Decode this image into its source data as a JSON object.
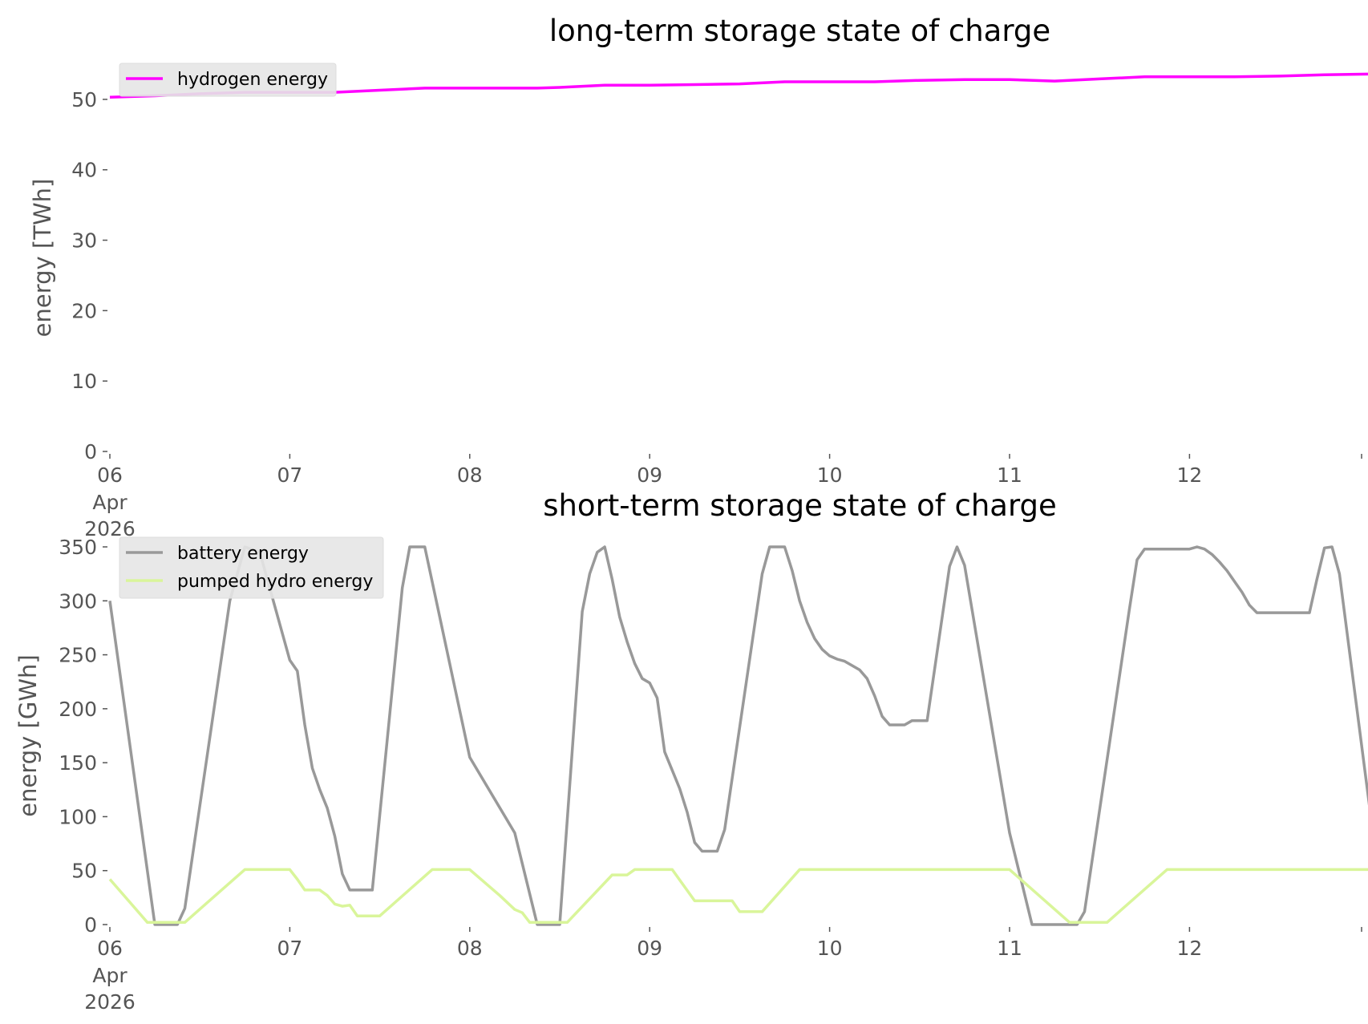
{
  "chart_data": [
    {
      "type": "line",
      "title": "long-term storage state of charge",
      "xlabel": "",
      "ylabel": "energy [TWh]",
      "ylim": [
        0,
        55
      ],
      "yticks": [
        0,
        10,
        20,
        30,
        40,
        50
      ],
      "xlim": [
        "2026-04-06",
        "2026-04-13"
      ],
      "x_tick_labels": [
        "06",
        "07",
        "08",
        "09",
        "10",
        "11",
        "12"
      ],
      "x_tick_sublabels": [
        "Apr",
        "2026"
      ],
      "grid": false,
      "legend": "top-left",
      "series": [
        {
          "name": "hydrogen energy",
          "color": "#ff00ff",
          "points": [
            [
              "2026-04-06 00:00",
              50.3
            ],
            [
              "2026-04-06 06:00",
              50.5
            ],
            [
              "2026-04-06 12:00",
              50.8
            ],
            [
              "2026-04-06 18:00",
              51.0
            ],
            [
              "2026-04-07 00:00",
              51.0
            ],
            [
              "2026-04-07 06:00",
              51.0
            ],
            [
              "2026-04-07 12:00",
              51.3
            ],
            [
              "2026-04-07 18:00",
              51.6
            ],
            [
              "2026-04-08 00:00",
              51.6
            ],
            [
              "2026-04-08 06:00",
              51.6
            ],
            [
              "2026-04-08 09:00",
              51.6
            ],
            [
              "2026-04-08 12:00",
              51.7
            ],
            [
              "2026-04-08 18:00",
              52.0
            ],
            [
              "2026-04-09 00:00",
              52.0
            ],
            [
              "2026-04-09 06:00",
              52.1
            ],
            [
              "2026-04-09 12:00",
              52.2
            ],
            [
              "2026-04-09 18:00",
              52.5
            ],
            [
              "2026-04-10 00:00",
              52.5
            ],
            [
              "2026-04-10 06:00",
              52.5
            ],
            [
              "2026-04-10 12:00",
              52.7
            ],
            [
              "2026-04-10 18:00",
              52.8
            ],
            [
              "2026-04-11 00:00",
              52.8
            ],
            [
              "2026-04-11 06:00",
              52.6
            ],
            [
              "2026-04-11 12:00",
              52.9
            ],
            [
              "2026-04-11 18:00",
              53.2
            ],
            [
              "2026-04-12 00:00",
              53.2
            ],
            [
              "2026-04-12 06:00",
              53.2
            ],
            [
              "2026-04-12 12:00",
              53.3
            ],
            [
              "2026-04-12 18:00",
              53.5
            ],
            [
              "2026-04-13 00:00",
              53.6
            ]
          ]
        }
      ]
    },
    {
      "type": "line",
      "title": "short-term storage state of charge",
      "xlabel": "",
      "ylabel": "energy [GWh]",
      "ylim": [
        0,
        350
      ],
      "yticks": [
        0,
        50,
        100,
        150,
        200,
        250,
        300,
        350
      ],
      "xlim": [
        "2026-04-06",
        "2026-04-13"
      ],
      "x_tick_labels": [
        "06",
        "07",
        "08",
        "09",
        "10",
        "11",
        "12"
      ],
      "x_tick_sublabels": [
        "Apr",
        "2026"
      ],
      "grid": false,
      "legend": "top-left",
      "series": [
        {
          "name": "battery energy",
          "color": "#999999",
          "points": [
            [
              "2026-04-06 00:00",
              300
            ],
            [
              "2026-04-06 06:00",
              0
            ],
            [
              "2026-04-06 09:00",
              0
            ],
            [
              "2026-04-06 10:00",
              15
            ],
            [
              "2026-04-06 16:00",
              300
            ],
            [
              "2026-04-06 18:00",
              350
            ],
            [
              "2026-04-06 20:00",
              345
            ],
            [
              "2026-04-07 00:00",
              245
            ],
            [
              "2026-04-07 01:00",
              235
            ],
            [
              "2026-04-07 02:00",
              185
            ],
            [
              "2026-04-07 03:00",
              145
            ],
            [
              "2026-04-07 04:00",
              125
            ],
            [
              "2026-04-07 05:00",
              108
            ],
            [
              "2026-04-07 06:00",
              82
            ],
            [
              "2026-04-07 07:00",
              47
            ],
            [
              "2026-04-07 08:00",
              32
            ],
            [
              "2026-04-07 11:00",
              32
            ],
            [
              "2026-04-07 15:00",
              312
            ],
            [
              "2026-04-07 16:00",
              350
            ],
            [
              "2026-04-07 18:00",
              350
            ],
            [
              "2026-04-08 00:00",
              155
            ],
            [
              "2026-04-08 06:00",
              85
            ],
            [
              "2026-04-08 09:00",
              0
            ],
            [
              "2026-04-08 12:00",
              0
            ],
            [
              "2026-04-08 15:00",
              290
            ],
            [
              "2026-04-08 16:00",
              325
            ],
            [
              "2026-04-08 17:00",
              345
            ],
            [
              "2026-04-08 18:00",
              350
            ],
            [
              "2026-04-08 19:00",
              320
            ],
            [
              "2026-04-08 20:00",
              285
            ],
            [
              "2026-04-08 21:00",
              262
            ],
            [
              "2026-04-08 22:00",
              242
            ],
            [
              "2026-04-08 23:00",
              228
            ],
            [
              "2026-04-09 00:00",
              224
            ],
            [
              "2026-04-09 01:00",
              210
            ],
            [
              "2026-04-09 02:00",
              160
            ],
            [
              "2026-04-09 03:00",
              143
            ],
            [
              "2026-04-09 04:00",
              126
            ],
            [
              "2026-04-09 05:00",
              104
            ],
            [
              "2026-04-09 06:00",
              76
            ],
            [
              "2026-04-09 07:00",
              68
            ],
            [
              "2026-04-09 09:00",
              68
            ],
            [
              "2026-04-09 10:00",
              88
            ],
            [
              "2026-04-09 15:00",
              325
            ],
            [
              "2026-04-09 16:00",
              350
            ],
            [
              "2026-04-09 18:00",
              350
            ],
            [
              "2026-04-09 19:00",
              328
            ],
            [
              "2026-04-09 20:00",
              300
            ],
            [
              "2026-04-09 21:00",
              280
            ],
            [
              "2026-04-09 22:00",
              265
            ],
            [
              "2026-04-09 23:00",
              255
            ],
            [
              "2026-04-10 00:00",
              249
            ],
            [
              "2026-04-10 01:00",
              246
            ],
            [
              "2026-04-10 02:00",
              244
            ],
            [
              "2026-04-10 03:00",
              240
            ],
            [
              "2026-04-10 04:00",
              236
            ],
            [
              "2026-04-10 05:00",
              228
            ],
            [
              "2026-04-10 06:00",
              212
            ],
            [
              "2026-04-10 07:00",
              193
            ],
            [
              "2026-04-10 08:00",
              185
            ],
            [
              "2026-04-10 10:00",
              185
            ],
            [
              "2026-04-10 11:00",
              189
            ],
            [
              "2026-04-10 13:00",
              189
            ],
            [
              "2026-04-10 16:00",
              332
            ],
            [
              "2026-04-10 17:00",
              350
            ],
            [
              "2026-04-10 18:00",
              333
            ],
            [
              "2026-04-11 00:00",
              85
            ],
            [
              "2026-04-11 03:00",
              0
            ],
            [
              "2026-04-11 09:00",
              0
            ],
            [
              "2026-04-11 10:00",
              12
            ],
            [
              "2026-04-11 16:00",
              293
            ],
            [
              "2026-04-11 17:00",
              338
            ],
            [
              "2026-04-11 18:00",
              348
            ],
            [
              "2026-04-12 00:00",
              348
            ],
            [
              "2026-04-12 01:00",
              350
            ],
            [
              "2026-04-12 02:00",
              348
            ],
            [
              "2026-04-12 03:00",
              343
            ],
            [
              "2026-04-12 04:00",
              336
            ],
            [
              "2026-04-12 05:00",
              328
            ],
            [
              "2026-04-12 06:00",
              318
            ],
            [
              "2026-04-12 07:00",
              308
            ],
            [
              "2026-04-12 08:00",
              296
            ],
            [
              "2026-04-12 09:00",
              289
            ],
            [
              "2026-04-12 16:00",
              289
            ],
            [
              "2026-04-12 17:00",
              320
            ],
            [
              "2026-04-12 18:00",
              349
            ],
            [
              "2026-04-12 19:00",
              350
            ],
            [
              "2026-04-12 20:00",
              325
            ],
            [
              "2026-04-13 00:00",
              110
            ]
          ]
        },
        {
          "name": "pumped hydro energy",
          "color": "#d9f59a",
          "points": [
            [
              "2026-04-06 00:00",
              42
            ],
            [
              "2026-04-06 05:00",
              2
            ],
            [
              "2026-04-06 10:00",
              2
            ],
            [
              "2026-04-06 18:00",
              51
            ],
            [
              "2026-04-07 00:00",
              51
            ],
            [
              "2026-04-07 01:00",
              42
            ],
            [
              "2026-04-07 02:00",
              32
            ],
            [
              "2026-04-07 04:00",
              32
            ],
            [
              "2026-04-07 05:00",
              27
            ],
            [
              "2026-04-07 06:00",
              19
            ],
            [
              "2026-04-07 07:00",
              17
            ],
            [
              "2026-04-07 08:00",
              18
            ],
            [
              "2026-04-07 09:00",
              8
            ],
            [
              "2026-04-07 12:00",
              8
            ],
            [
              "2026-04-07 19:00",
              51
            ],
            [
              "2026-04-08 00:00",
              51
            ],
            [
              "2026-04-08 04:00",
              27
            ],
            [
              "2026-04-08 06:00",
              14
            ],
            [
              "2026-04-08 07:00",
              11
            ],
            [
              "2026-04-08 08:00",
              2
            ],
            [
              "2026-04-08 13:00",
              2
            ],
            [
              "2026-04-08 19:00",
              46
            ],
            [
              "2026-04-08 21:00",
              46
            ],
            [
              "2026-04-08 22:00",
              51
            ],
            [
              "2026-04-09 03:00",
              51
            ],
            [
              "2026-04-09 06:00",
              22
            ],
            [
              "2026-04-09 11:00",
              22
            ],
            [
              "2026-04-09 12:00",
              12
            ],
            [
              "2026-04-09 15:00",
              12
            ],
            [
              "2026-04-09 20:00",
              51
            ],
            [
              "2026-04-10 00:00",
              51
            ],
            [
              "2026-04-11 00:00",
              51
            ],
            [
              "2026-04-11 08:00",
              2
            ],
            [
              "2026-04-11 13:00",
              2
            ],
            [
              "2026-04-11 21:00",
              51
            ],
            [
              "2026-04-12 00:00",
              51
            ],
            [
              "2026-04-13 00:00",
              51
            ]
          ]
        }
      ]
    }
  ]
}
